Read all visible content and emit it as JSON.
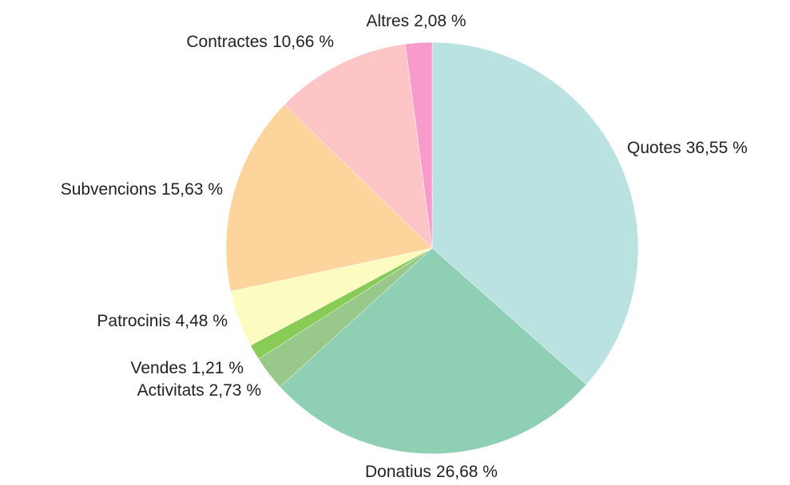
{
  "chart_data": {
    "type": "pie",
    "categories": [
      "Quotes",
      "Donatius",
      "Activitats",
      "Vendes",
      "Patrocinis",
      "Subvencions",
      "Contractes",
      "Altres"
    ],
    "values": [
      36.55,
      26.68,
      2.73,
      1.21,
      4.48,
      15.63,
      10.66,
      2.08
    ],
    "value_labels": [
      "36,55 %",
      "26,68 %",
      "2,73 %",
      "1,21 %",
      "4,48 %",
      "15,63 %",
      "10,66 %",
      "2,08 %"
    ],
    "colors": [
      "#b9e2e1",
      "#8fcfb4",
      "#98c98a",
      "#88cc55",
      "#fdfcc0",
      "#fdd49b",
      "#fdc5c5",
      "#f89acb"
    ]
  }
}
